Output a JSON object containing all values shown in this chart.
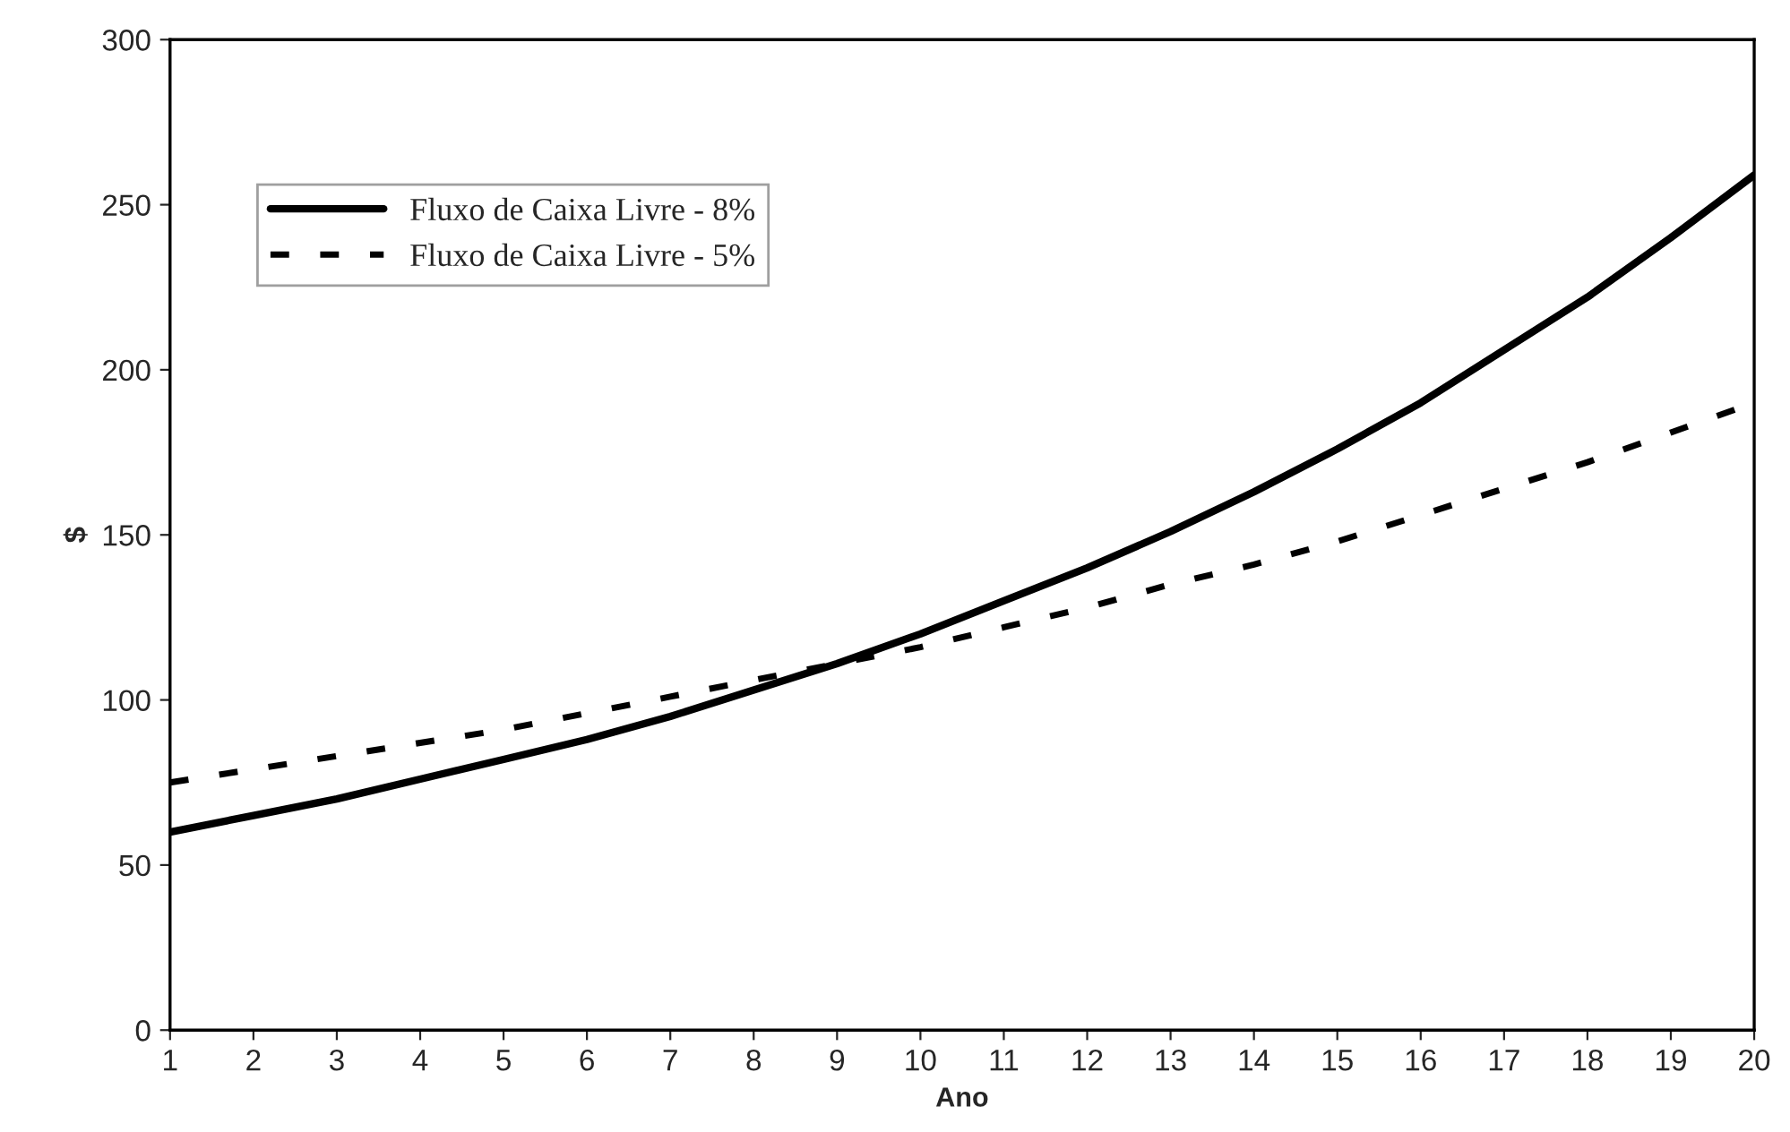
{
  "chart_data": {
    "type": "line",
    "xlabel": "Ano",
    "ylabel": "$",
    "categories": [
      "1",
      "2",
      "3",
      "4",
      "5",
      "6",
      "7",
      "8",
      "9",
      "10",
      "11",
      "12",
      "13",
      "14",
      "15",
      "16",
      "17",
      "18",
      "19",
      "20"
    ],
    "series": [
      {
        "name": "Fluxo de Caixa Livre - 8%",
        "color": "#000000",
        "line_style": "solid",
        "values": [
          60,
          65,
          70,
          76,
          82,
          88,
          95,
          103,
          111,
          120,
          130,
          140,
          151,
          163,
          176,
          190,
          206,
          222,
          240,
          259
        ]
      },
      {
        "name": "Fluxo de Caixa Livre - 5%",
        "color": "#000000",
        "line_style": "dashed",
        "values": [
          75,
          79,
          83,
          87,
          91,
          96,
          101,
          106,
          111,
          116,
          122,
          128,
          135,
          141,
          148,
          156,
          164,
          172,
          181,
          190
        ]
      }
    ],
    "ylim": [
      0,
      300
    ],
    "yticks": [
      0,
      50,
      100,
      150,
      200,
      250,
      300
    ],
    "grid": false,
    "legend": "top left"
  }
}
